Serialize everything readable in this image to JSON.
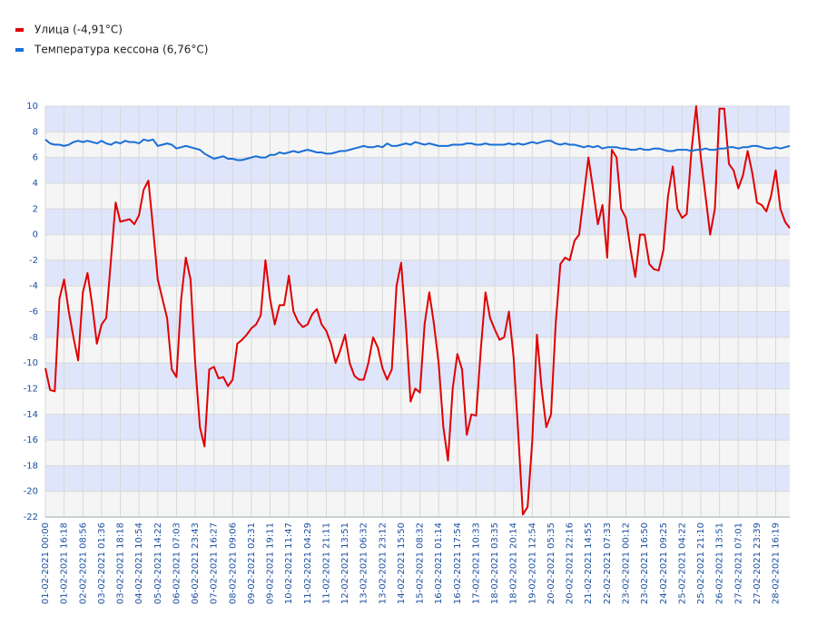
{
  "chart_data": {
    "type": "line",
    "categories": [
      "01-02-2021 00:00",
      null,
      null,
      null,
      "01-02-2021 16:18",
      null,
      null,
      null,
      "02-02-2021 08:56",
      null,
      null,
      null,
      "03-02-2021 01:36",
      null,
      null,
      null,
      "03-02-2021 18:18",
      null,
      null,
      null,
      "04-02-2021 10:54",
      null,
      null,
      null,
      "05-02-2021 14:22",
      null,
      null,
      null,
      "06-02-2021 07:03",
      null,
      null,
      null,
      "06-02-2021 23:43",
      null,
      null,
      null,
      "07-02-2021 16:27",
      null,
      null,
      null,
      "08-02-2021 09:06",
      null,
      null,
      null,
      "09-02-2021 02:31",
      null,
      null,
      null,
      "09-02-2021 19:11",
      null,
      null,
      null,
      "10-02-2021 11:47",
      null,
      null,
      null,
      "11-02-2021 04:29",
      null,
      null,
      null,
      "11-02-2021 21:11",
      null,
      null,
      null,
      "12-02-2021 13:51",
      null,
      null,
      null,
      "13-02-2021 06:32",
      null,
      null,
      null,
      "13-02-2021 23:12",
      null,
      null,
      null,
      "14-02-2021 15:50",
      null,
      null,
      null,
      "15-02-2021 08:32",
      null,
      null,
      null,
      "16-02-2021 01:14",
      null,
      null,
      null,
      "16-02-2021 17:54",
      null,
      null,
      null,
      "17-02-2021 10:33",
      null,
      null,
      null,
      "18-02-2021 03:35",
      null,
      null,
      null,
      "18-02-2021 20:14",
      null,
      null,
      null,
      "19-02-2021 12:54",
      null,
      null,
      null,
      "20-02-2021 05:35",
      null,
      null,
      null,
      "20-02-2021 22:16",
      null,
      null,
      null,
      "21-02-2021 14:55",
      null,
      null,
      null,
      "22-02-2021 07:33",
      null,
      null,
      null,
      "23-02-2021 00:12",
      null,
      null,
      null,
      "23-02-2021 16:50",
      null,
      null,
      null,
      "24-02-2021 09:25",
      null,
      null,
      null,
      "25-02-2021 04:22",
      null,
      null,
      null,
      "25-02-2021 21:10",
      null,
      null,
      null,
      "26-02-2021 13:51",
      null,
      null,
      null,
      "27-02-2021 07:01",
      null,
      null,
      null,
      "27-02-2021 23:39",
      null,
      null,
      null,
      "28-02-2021 16:19",
      null,
      null,
      null
    ],
    "series": [
      {
        "name": "Улица (-4,91°C)",
        "color": "#e00000",
        "values": [
          -10.4,
          -12.1,
          -12.2,
          -5,
          -3.5,
          -6,
          -8,
          -9.8,
          -4.5,
          -3,
          -5.5,
          -8.5,
          -7,
          -6.5,
          -2,
          2.5,
          1,
          1.1,
          1.2,
          0.8,
          1.5,
          3.5,
          4.2,
          0.5,
          -3.5,
          -5,
          -6.5,
          -10.5,
          -11.1,
          -5,
          -1.8,
          -3.5,
          -10,
          -15,
          -16.5,
          -10.5,
          -10.3,
          -11.2,
          -11.1,
          -11.8,
          -11.3,
          -8.5,
          -8.2,
          -7.8,
          -7.3,
          -7,
          -6.3,
          -2,
          -5,
          -7,
          -5.5,
          -5.5,
          -3.2,
          -6,
          -6.8,
          -7.2,
          -7,
          -6.2,
          -5.8,
          -7,
          -7.5,
          -8.5,
          -10,
          -9,
          -7.8,
          -10,
          -11,
          -11.3,
          -11.3,
          -10,
          -8,
          -8.8,
          -10.4,
          -11.3,
          -10.5,
          -4,
          -2.2,
          -7,
          -13,
          -12,
          -12.3,
          -7,
          -4.5,
          -7,
          -10,
          -15,
          -17.6,
          -12,
          -9.3,
          -10.5,
          -15.6,
          -14,
          -14.1,
          -9,
          -4.5,
          -6.5,
          -7.4,
          -8.2,
          -8,
          -6,
          -9.5,
          -15.5,
          -21.8,
          -21.2,
          -16,
          -7.8,
          -12,
          -15,
          -14,
          -7,
          -2.3,
          -1.8,
          -2,
          -0.5,
          0,
          3,
          6,
          3.5,
          0.8,
          2.3,
          -1.8,
          6.6,
          6,
          2,
          1.3,
          -1.2,
          -3.3,
          0,
          0,
          -2.3,
          -2.7,
          -2.8,
          -1.2,
          3,
          5.3,
          2,
          1.3,
          1.6,
          6.5,
          10,
          6,
          3,
          0,
          2,
          9.8,
          9.8,
          5.5,
          5,
          3.6,
          4.6,
          6.5,
          4.8,
          2.5,
          2.3,
          1.8,
          3,
          5,
          2,
          1,
          0.5
        ]
      },
      {
        "name": "Температура кессона (6,76°C)",
        "color": "#1a6fd6",
        "values": [
          7.4,
          7.1,
          7.0,
          7.0,
          6.9,
          7.0,
          7.2,
          7.3,
          7.2,
          7.3,
          7.2,
          7.1,
          7.3,
          7.1,
          7.0,
          7.2,
          7.1,
          7.3,
          7.2,
          7.2,
          7.1,
          7.4,
          7.3,
          7.4,
          6.9,
          7.0,
          7.1,
          7.0,
          6.7,
          6.8,
          6.9,
          6.8,
          6.7,
          6.6,
          6.3,
          6.1,
          5.9,
          6.0,
          6.1,
          5.9,
          5.9,
          5.8,
          5.8,
          5.9,
          6.0,
          6.1,
          6.0,
          6.0,
          6.2,
          6.2,
          6.4,
          6.3,
          6.4,
          6.5,
          6.4,
          6.5,
          6.6,
          6.5,
          6.4,
          6.4,
          6.3,
          6.3,
          6.4,
          6.5,
          6.5,
          6.6,
          6.7,
          6.8,
          6.9,
          6.8,
          6.8,
          6.9,
          6.8,
          7.1,
          6.9,
          6.9,
          7.0,
          7.1,
          7.0,
          7.2,
          7.1,
          7.0,
          7.1,
          7.0,
          6.9,
          6.9,
          6.9,
          7.0,
          7.0,
          7.0,
          7.1,
          7.1,
          7.0,
          7.0,
          7.1,
          7.0,
          7.0,
          7.0,
          7.0,
          7.1,
          7.0,
          7.1,
          7.0,
          7.1,
          7.2,
          7.1,
          7.2,
          7.3,
          7.3,
          7.1,
          7.0,
          7.1,
          7.0,
          7.0,
          6.9,
          6.8,
          6.9,
          6.8,
          6.9,
          6.7,
          6.8,
          6.8,
          6.8,
          6.7,
          6.7,
          6.6,
          6.6,
          6.7,
          6.6,
          6.6,
          6.7,
          6.7,
          6.6,
          6.5,
          6.5,
          6.6,
          6.6,
          6.6,
          6.5,
          6.6,
          6.6,
          6.7,
          6.6,
          6.6,
          6.7,
          6.7,
          6.8,
          6.8,
          6.7,
          6.8,
          6.8,
          6.9,
          6.9,
          6.8,
          6.7,
          6.7,
          6.8,
          6.7,
          6.8,
          6.9
        ]
      }
    ],
    "ylim": [
      -22,
      10
    ],
    "yticks": [
      -22,
      -20,
      -18,
      -16,
      -14,
      -12,
      -10,
      -8,
      -6,
      -4,
      -2,
      0,
      2,
      4,
      6,
      8,
      10
    ],
    "grid": true
  }
}
